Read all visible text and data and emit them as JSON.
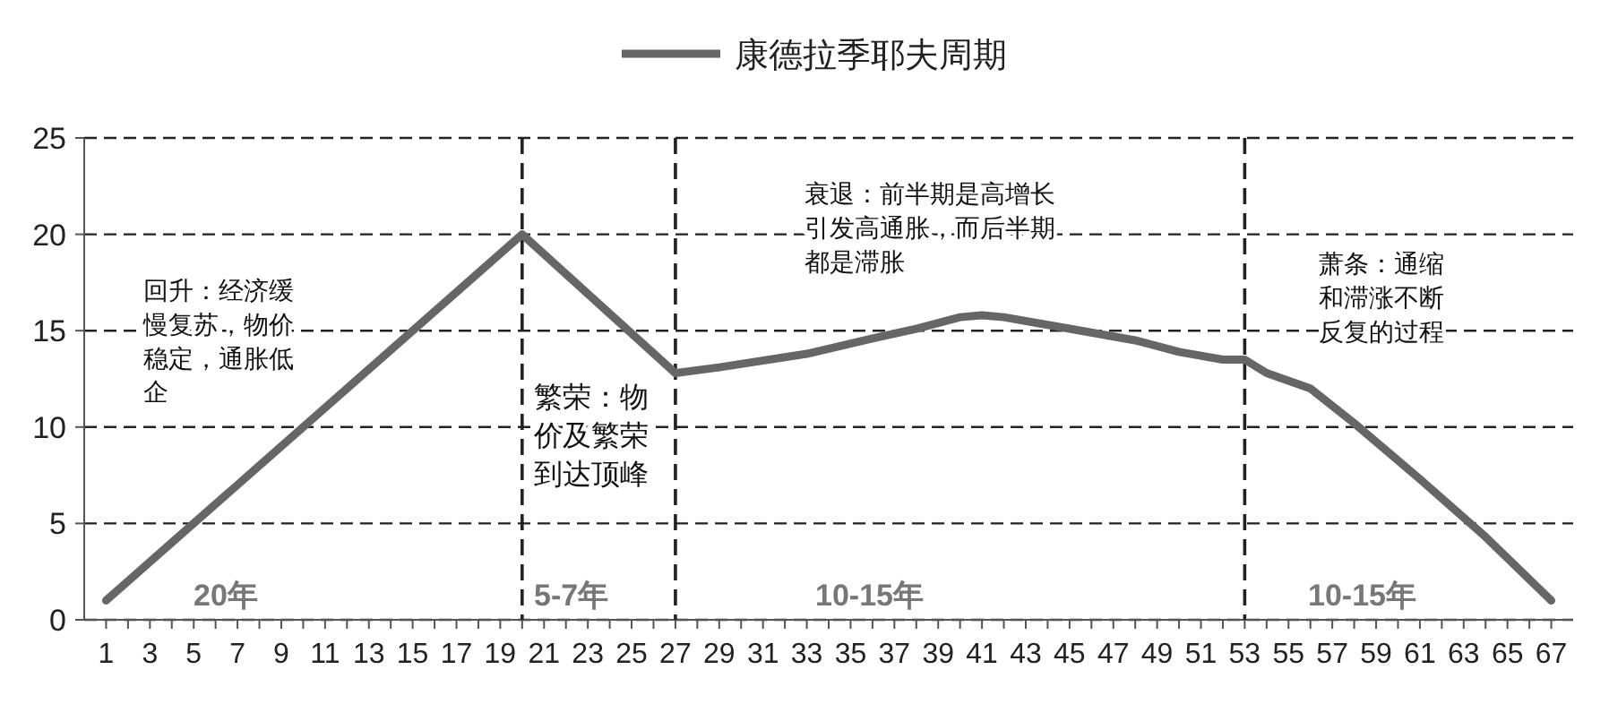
{
  "chart_data": {
    "type": "line",
    "legend": "top",
    "grid": "y",
    "line_style": "solid",
    "marker": "none",
    "xlim": [
      0,
      68
    ],
    "ylim": [
      0,
      25
    ],
    "yticks": [
      0,
      5,
      10,
      15,
      20,
      25
    ],
    "xticks": [
      1,
      {
        "value": 2,
        "label": null
      },
      3,
      {
        "value": 4,
        "label": null
      },
      5,
      {
        "value": 6,
        "label": null
      },
      7,
      {
        "value": 8,
        "label": null
      },
      9,
      {
        "value": 10,
        "label": null
      },
      11,
      {
        "value": 12,
        "label": null
      },
      13,
      {
        "value": 14,
        "label": null
      },
      15,
      {
        "value": 16,
        "label": null
      },
      17,
      {
        "value": 18,
        "label": null
      },
      19,
      {
        "value": 20,
        "label": null
      },
      21,
      {
        "value": 22,
        "label": null
      },
      23,
      {
        "value": 24,
        "label": null
      },
      25,
      {
        "value": 26,
        "label": null
      },
      27,
      {
        "value": 28,
        "label": null
      },
      29,
      {
        "value": 30,
        "label": null
      },
      31,
      {
        "value": 32,
        "label": null
      },
      33,
      {
        "value": 34,
        "label": null
      },
      35,
      {
        "value": 36,
        "label": null
      },
      37,
      {
        "value": 38,
        "label": null
      },
      39,
      {
        "value": 40,
        "label": null
      },
      41,
      {
        "value": 42,
        "label": null
      },
      43,
      {
        "value": 44,
        "label": null
      },
      45,
      {
        "value": 46,
        "label": null
      },
      47,
      {
        "value": 48,
        "label": null
      },
      49,
      {
        "value": 50,
        "label": null
      },
      51,
      {
        "value": 52,
        "label": null
      },
      53,
      {
        "value": 54,
        "label": null
      },
      55,
      {
        "value": 56,
        "label": null
      },
      57,
      {
        "value": 58,
        "label": null
      },
      59,
      {
        "value": 60,
        "label": null
      },
      61,
      {
        "value": 62,
        "label": null
      },
      63,
      {
        "value": 64,
        "label": null
      },
      65,
      {
        "value": 66,
        "label": null
      },
      67
    ],
    "series": [
      {
        "name": "康德拉季耶夫周期",
        "color": "#666666",
        "x": [
          1,
          20,
          27,
          29,
          33,
          36,
          38,
          40,
          41,
          42,
          45,
          48,
          50,
          52,
          53,
          54,
          56,
          58,
          61,
          64,
          67
        ],
        "values": [
          1,
          20,
          12.8,
          13.1,
          13.8,
          14.6,
          15.1,
          15.7,
          15.8,
          15.7,
          15.1,
          14.5,
          13.9,
          13.5,
          13.5,
          12.8,
          12.0,
          10.2,
          7.3,
          4.3,
          1.0
        ]
      }
    ],
    "ref_lines": [
      {
        "axis": "x",
        "value": 20,
        "color": "#222222",
        "line_style": "dashed"
      },
      {
        "axis": "x",
        "value": 27,
        "color": "#222222",
        "line_style": "dashed"
      },
      {
        "axis": "x",
        "value": 53,
        "color": "#222222",
        "line_style": "dashed"
      }
    ],
    "annotations": [
      "回升：经济缓慢复苏，物价稳定，通胀低企",
      "繁荣：物价及繁荣到达顶峰",
      "衰退：前半期是高增长引发高通胀，而后半期都是滞胀",
      "萧条：通缩和滞涨不断反复的过程",
      "20年",
      "5-7年",
      "10-15年",
      "10-15年"
    ]
  }
}
